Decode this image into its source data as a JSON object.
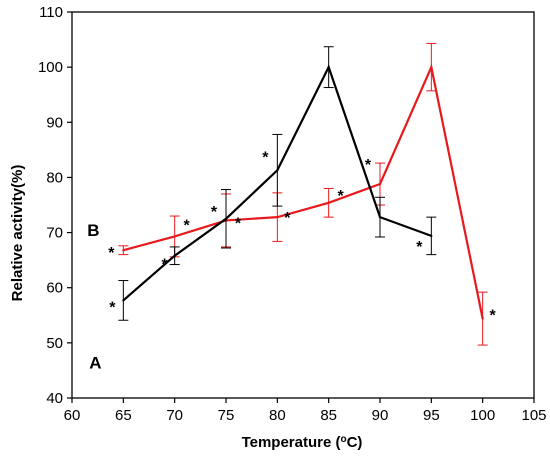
{
  "chart_data": {
    "type": "line",
    "xlabel": "Temperature (°C)",
    "ylabel": "Relative activity(%)",
    "xlim": [
      60,
      105
    ],
    "ylim": [
      40,
      110
    ],
    "x_ticks": [
      "60",
      "65",
      "70",
      "75",
      "80",
      "85",
      "90",
      "95",
      "100",
      "105"
    ],
    "y_ticks": [
      "40",
      "50",
      "60",
      "70",
      "80",
      "90",
      "100",
      "110"
    ],
    "grid": false,
    "series": [
      {
        "name": "A",
        "color": "#000000",
        "x": [
          65,
          70,
          75,
          80,
          85,
          90,
          95
        ],
        "values": [
          57.7,
          65.8,
          72.5,
          81.3,
          100.0,
          72.8,
          69.4
        ],
        "error": [
          3.6,
          1.6,
          5.3,
          6.5,
          3.7,
          3.6,
          3.4
        ],
        "annotations": [
          "*",
          "*",
          "*",
          "*",
          "",
          "",
          "*"
        ]
      },
      {
        "name": "B",
        "color": "#e8191c",
        "x": [
          65,
          70,
          75,
          80,
          85,
          90,
          95,
          100
        ],
        "values": [
          66.8,
          69.3,
          72.2,
          72.8,
          75.4,
          78.8,
          100.0,
          54.4
        ],
        "error": [
          0.8,
          3.7,
          4.8,
          4.4,
          2.6,
          3.8,
          4.3,
          4.8
        ],
        "annotations": [
          "*",
          "*",
          "*",
          "*",
          "*",
          "*",
          "",
          "*"
        ]
      }
    ]
  }
}
